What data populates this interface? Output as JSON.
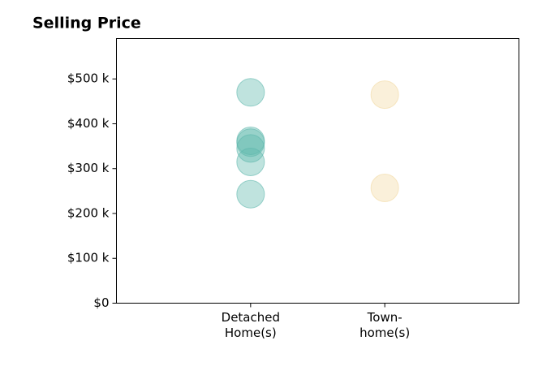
{
  "chart_data": {
    "type": "strip",
    "title": "Selling Price",
    "categories": [
      "Detached\nHome(s)",
      "Town-\nhome(s)"
    ],
    "series": [
      {
        "color": "#5fb8ad",
        "values": [
          470000,
          362000,
          358000,
          345000,
          315000,
          243000
        ]
      },
      {
        "color": "#f2d9a2",
        "values": [
          465000,
          257000
        ]
      }
    ],
    "ylim": [
      0,
      590000
    ],
    "yticks": [
      {
        "value": 0,
        "label": "$0"
      },
      {
        "value": 100000,
        "label": "$100 k"
      },
      {
        "value": 200000,
        "label": "$200 k"
      },
      {
        "value": 300000,
        "label": "$300 k"
      },
      {
        "value": 400000,
        "label": "$400 k"
      },
      {
        "value": 500000,
        "label": "$500 k"
      }
    ]
  }
}
